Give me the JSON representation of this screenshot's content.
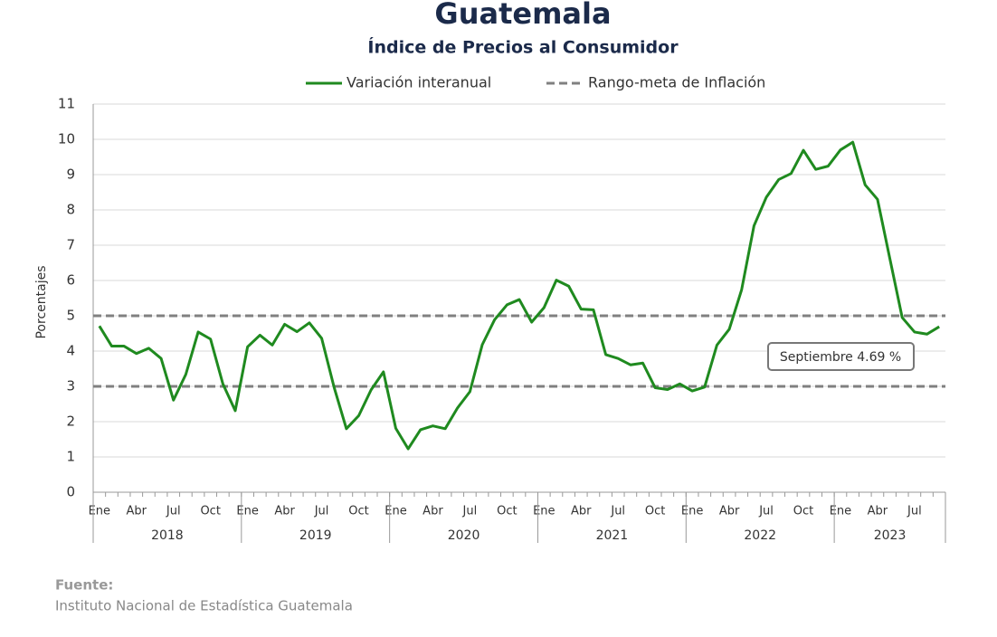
{
  "chart_data": {
    "type": "line",
    "title": "Guatemala",
    "subtitle": "Índice de Precios al Consumidor",
    "y_label": "Porcentajes",
    "categories": [
      "Ene",
      null,
      null,
      "Abr",
      null,
      null,
      "Jul",
      null,
      null,
      "Oct",
      null,
      null,
      "Ene",
      null,
      null,
      "Abr",
      null,
      null,
      "Jul",
      null,
      null,
      "Oct",
      null,
      null,
      "Ene",
      null,
      null,
      "Abr",
      null,
      null,
      "Jul",
      null,
      null,
      "Oct",
      null,
      null,
      "Ene",
      null,
      null,
      "Abr",
      null,
      null,
      "Jul",
      null,
      null,
      "Oct",
      null,
      null,
      "Ene",
      null,
      null,
      "Abr",
      null,
      null,
      "Jul",
      null,
      null,
      "Oct",
      null,
      null,
      "Ene",
      null,
      null,
      "Abr",
      null,
      null,
      "Jul",
      null,
      null
    ],
    "year_groups": [
      "2018",
      "2019",
      "2020",
      "2021",
      "2022",
      "2023"
    ],
    "series": [
      {
        "name": "Variación interanual",
        "color": "#1f8a1f",
        "values": [
          4.71,
          4.14,
          4.14,
          3.93,
          4.08,
          3.79,
          2.61,
          3.34,
          4.54,
          4.34,
          3.07,
          2.31,
          4.12,
          4.45,
          4.17,
          4.76,
          4.55,
          4.8,
          4.36,
          2.98,
          1.8,
          2.17,
          2.9,
          3.41,
          1.81,
          1.23,
          1.77,
          1.88,
          1.8,
          2.39,
          2.85,
          4.18,
          4.89,
          5.31,
          5.46,
          4.82,
          5.23,
          6.01,
          5.84,
          5.19,
          5.17,
          3.9,
          3.79,
          3.61,
          3.66,
          2.96,
          2.91,
          3.07,
          2.87,
          2.98,
          4.17,
          4.62,
          5.74,
          7.55,
          8.36,
          8.86,
          9.03,
          9.69,
          9.15,
          9.24,
          9.7,
          9.92,
          8.71,
          8.3,
          6.62,
          4.95,
          4.54,
          4.48,
          4.69
        ]
      }
    ],
    "reference": {
      "name": "Rango-meta de Inflación",
      "color": "#808080",
      "values": [
        3,
        5
      ]
    },
    "annotation": "Septiembre 4.69 %",
    "ylim": [
      0,
      11
    ],
    "yticks": [
      0,
      1,
      2,
      3,
      4,
      5,
      6,
      7,
      8,
      9,
      10,
      11
    ],
    "grid": true,
    "source_label": "Fuente:",
    "source": "Instituto Nacional de Estadística Guatemala"
  }
}
